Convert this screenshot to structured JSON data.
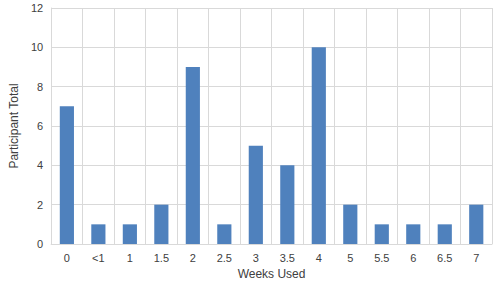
{
  "chart_data": {
    "type": "bar",
    "x_label": "Weeks Used",
    "y_label": "Participant Total",
    "categories": [
      "0",
      "<1",
      "1",
      "1.5",
      "2",
      "2.5",
      "3",
      "3.5",
      "4",
      "5",
      "5.5",
      "6",
      "6.5",
      "7"
    ],
    "values": [
      7,
      1,
      1,
      2,
      9,
      1,
      5,
      4,
      10,
      2,
      1,
      1,
      1,
      2
    ],
    "color": "#4f81bd",
    "ylim": [
      0,
      12
    ],
    "yticks": [
      0,
      2,
      4,
      6,
      8,
      10,
      12
    ],
    "grid": true
  }
}
